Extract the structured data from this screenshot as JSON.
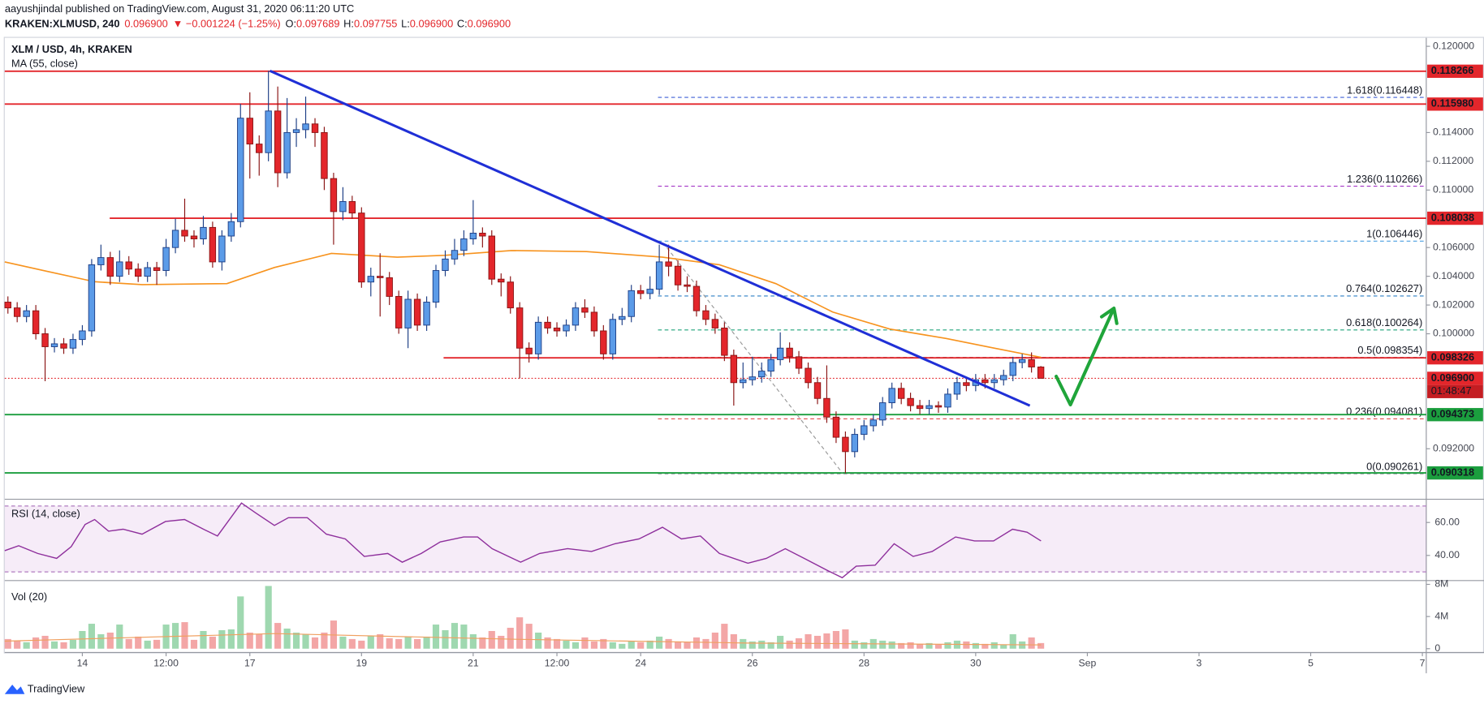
{
  "header": {
    "author_line": "aayushjindal published on TradingView.com, August 31, 2020 06:11:20 UTC",
    "symbol": "KRAKEN:XLMUSD, 240",
    "price": "0.096900",
    "change": "▼ −0.001224 (−1.25%)",
    "o_label": "O:",
    "o": "0.097689",
    "h_label": "H:",
    "h": "0.097755",
    "l_label": "L:",
    "l": "0.096900",
    "c_label": "C:",
    "c": "0.096900"
  },
  "footer": {
    "brand": "TradingView"
  },
  "chart_data": {
    "type": "candlestick",
    "legend": "XLM / USD, 4h, KRAKEN",
    "up_color": "#5b9be8",
    "down_color": "#e3262b",
    "x": [
      12.667,
      12.833,
      13,
      13.167,
      13.333,
      13.5,
      13.667,
      13.833,
      14,
      14.167,
      14.333,
      14.5,
      14.667,
      14.833,
      15,
      15.167,
      15.333,
      15.5,
      15.667,
      15.833,
      16,
      16.167,
      16.333,
      16.5,
      16.667,
      16.833,
      17,
      17.167,
      17.333,
      17.5,
      17.667,
      17.833,
      18,
      18.167,
      18.333,
      18.5,
      18.667,
      18.833,
      19,
      19.167,
      19.333,
      19.5,
      19.667,
      19.833,
      20,
      20.167,
      20.333,
      20.5,
      20.667,
      20.833,
      21,
      21.167,
      21.333,
      21.5,
      21.667,
      21.833,
      22,
      22.167,
      22.333,
      22.5,
      22.667,
      22.833,
      23,
      23.167,
      23.333,
      23.5,
      23.667,
      23.833,
      24,
      24.167,
      24.333,
      24.5,
      24.667,
      24.833,
      25,
      25.167,
      25.333,
      25.5,
      25.667,
      25.833,
      26,
      26.167,
      26.333,
      26.5,
      26.667,
      26.833,
      27,
      27.167,
      27.333,
      27.5,
      27.667,
      27.833,
      28,
      28.167,
      28.333,
      28.5,
      28.667,
      28.833,
      29,
      29.167,
      29.333,
      29.5,
      29.667,
      29.833,
      30,
      30.167,
      30.333,
      30.5,
      30.667,
      30.833,
      31,
      31.167
    ],
    "open": [
      0.1022,
      0.1018,
      0.1012,
      0.1016,
      0.1,
      0.0991,
      0.0993,
      0.099,
      0.0996,
      0.1002,
      0.1048,
      0.1053,
      0.104,
      0.105,
      0.1045,
      0.104,
      0.1046,
      0.1044,
      0.106,
      0.1072,
      0.1068,
      0.1066,
      0.1074,
      0.105,
      0.1068,
      0.1078,
      0.115,
      0.1132,
      0.1126,
      0.1155,
      0.1112,
      0.114,
      0.1142,
      0.1146,
      0.114,
      0.1108,
      0.1085,
      0.1092,
      0.1084,
      0.1036,
      0.104,
      0.1039,
      0.1026,
      0.1004,
      0.1024,
      0.1006,
      0.1022,
      0.1044,
      0.1052,
      0.1058,
      0.1066,
      0.107,
      0.1068,
      0.1038,
      0.1036,
      0.1018,
      0.099,
      0.0986,
      0.1008,
      0.1004,
      0.1002,
      0.1006,
      0.1018,
      0.1015,
      0.1002,
      0.0986,
      0.101,
      0.1012,
      0.103,
      0.1028,
      0.1031,
      0.105,
      0.1047,
      0.1034,
      0.1033,
      0.1016,
      0.101,
      0.1004,
      0.0985,
      0.0966,
      0.0968,
      0.097,
      0.0974,
      0.0982,
      0.099,
      0.0984,
      0.0976,
      0.0966,
      0.0955,
      0.0942,
      0.0928,
      0.0918,
      0.093,
      0.0936,
      0.094,
      0.0952,
      0.0962,
      0.0955,
      0.095,
      0.0948,
      0.095,
      0.0949,
      0.0958,
      0.0966,
      0.0964,
      0.0968,
      0.0966,
      0.0968,
      0.0971,
      0.098,
      0.0982,
      0.097689
    ],
    "high": [
      0.1026,
      0.1022,
      0.102,
      0.102,
      0.1004,
      0.0997,
      0.0997,
      0.1,
      0.1006,
      0.1052,
      0.1062,
      0.1057,
      0.1058,
      0.1054,
      0.1049,
      0.105,
      0.105,
      0.1066,
      0.108,
      0.1094,
      0.1072,
      0.1082,
      0.1078,
      0.1072,
      0.1084,
      0.116,
      0.1168,
      0.1138,
      0.1183,
      0.1172,
      0.1164,
      0.115,
      0.1165,
      0.115,
      0.1144,
      0.1112,
      0.1102,
      0.1096,
      0.1088,
      0.1046,
      0.1056,
      0.1043,
      0.103,
      0.103,
      0.1028,
      0.1026,
      0.1048,
      0.1058,
      0.1066,
      0.1072,
      0.1093,
      0.1074,
      0.1072,
      0.1042,
      0.104,
      0.1022,
      0.0994,
      0.1012,
      0.1012,
      0.1008,
      0.101,
      0.1022,
      0.1024,
      0.1019,
      0.1006,
      0.1014,
      0.1018,
      0.1034,
      0.1034,
      0.104,
      0.1062,
      0.1062,
      0.1051,
      0.104,
      0.1037,
      0.102,
      0.1014,
      0.1008,
      0.0989,
      0.098,
      0.0984,
      0.098,
      0.0986,
      0.1001,
      0.0994,
      0.0988,
      0.098,
      0.097,
      0.0978,
      0.0946,
      0.0932,
      0.0934,
      0.094,
      0.0944,
      0.0956,
      0.0966,
      0.0966,
      0.0959,
      0.0954,
      0.0954,
      0.0953,
      0.0962,
      0.097,
      0.097,
      0.0972,
      0.0972,
      0.0972,
      0.0975,
      0.0984,
      0.0986,
      0.0987,
      0.097755
    ],
    "low": [
      0.1014,
      0.1008,
      0.1008,
      0.0996,
      0.0967,
      0.0987,
      0.0986,
      0.0986,
      0.0992,
      0.0998,
      0.1044,
      0.1034,
      0.1036,
      0.1041,
      0.1036,
      0.1036,
      0.1034,
      0.104,
      0.1056,
      0.1064,
      0.106,
      0.1062,
      0.1046,
      0.1044,
      0.1064,
      0.1074,
      0.1108,
      0.111,
      0.112,
      0.1102,
      0.1108,
      0.113,
      0.1136,
      0.113,
      0.11,
      0.1062,
      0.1079,
      0.108,
      0.1032,
      0.1026,
      0.1012,
      0.102,
      0.1,
      0.099,
      0.1002,
      0.1002,
      0.1018,
      0.104,
      0.1048,
      0.1054,
      0.1062,
      0.106,
      0.1034,
      0.1026,
      0.1014,
      0.0969,
      0.098,
      0.0982,
      0.1,
      0.0998,
      0.0998,
      0.1002,
      0.1011,
      0.0998,
      0.0982,
      0.0982,
      0.1006,
      0.1008,
      0.1024,
      0.1024,
      0.1027,
      0.104,
      0.103,
      0.1029,
      0.1012,
      0.1006,
      0.1,
      0.0981,
      0.095,
      0.0962,
      0.0964,
      0.0966,
      0.097,
      0.0978,
      0.098,
      0.0972,
      0.0962,
      0.0951,
      0.0938,
      0.0924,
      0.0903,
      0.0914,
      0.0926,
      0.0932,
      0.0936,
      0.0948,
      0.0951,
      0.0946,
      0.0944,
      0.0944,
      0.0945,
      0.0945,
      0.0954,
      0.096,
      0.096,
      0.0962,
      0.0962,
      0.0964,
      0.0967,
      0.0976,
      0.0973,
      0.0969
    ],
    "close": [
      0.1018,
      0.1012,
      0.1016,
      0.1,
      0.0991,
      0.0993,
      0.099,
      0.0996,
      0.1002,
      0.1048,
      0.1053,
      0.104,
      0.105,
      0.1045,
      0.104,
      0.1046,
      0.1044,
      0.106,
      0.1072,
      0.1068,
      0.1066,
      0.1074,
      0.105,
      0.1068,
      0.1078,
      0.115,
      0.1132,
      0.1126,
      0.1155,
      0.1112,
      0.114,
      0.1142,
      0.1146,
      0.114,
      0.1108,
      0.1085,
      0.1092,
      0.1084,
      0.1036,
      0.104,
      0.1039,
      0.1026,
      0.1004,
      0.1024,
      0.1006,
      0.1022,
      0.1044,
      0.1052,
      0.1058,
      0.1066,
      0.107,
      0.1068,
      0.1038,
      0.1036,
      0.1018,
      0.099,
      0.0986,
      0.1008,
      0.1004,
      0.1002,
      0.1006,
      0.1018,
      0.1015,
      0.1002,
      0.0986,
      0.101,
      0.1012,
      0.103,
      0.1028,
      0.1031,
      0.105,
      0.1047,
      0.1034,
      0.1033,
      0.1016,
      0.101,
      0.1004,
      0.0985,
      0.0966,
      0.0968,
      0.097,
      0.0974,
      0.0982,
      0.099,
      0.0984,
      0.0976,
      0.0966,
      0.0955,
      0.0942,
      0.0928,
      0.0918,
      0.093,
      0.0936,
      0.094,
      0.0952,
      0.0962,
      0.0955,
      0.095,
      0.0948,
      0.095,
      0.0949,
      0.0958,
      0.0966,
      0.0964,
      0.0968,
      0.0966,
      0.0968,
      0.0971,
      0.098,
      0.0982,
      0.097689,
      0.0969
    ],
    "ma": {
      "name": "MA (55, close)",
      "color": "#f7931e",
      "x": [
        12.61,
        13.37,
        14.22,
        15.07,
        16.59,
        17.44,
        18.46,
        19.64,
        20.49,
        21.68,
        23.03,
        24.39,
        25.41,
        26.42,
        27.44,
        28.46,
        29.47,
        30.32,
        31.17
      ],
      "values": [
        0.105,
        0.10434,
        0.10362,
        0.10342,
        0.10349,
        0.10461,
        0.10559,
        0.10533,
        0.10546,
        0.10579,
        0.10572,
        0.10533,
        0.1048,
        0.10349,
        0.10151,
        0.10033,
        0.09967,
        0.09901,
        0.09836
      ]
    },
    "xlim": [
      12.61,
      38.07
    ],
    "xticks": [
      14,
      {
        "value": 15.5,
        "label": "12:00"
      },
      17,
      19,
      21,
      {
        "value": 22.5,
        "label": "12:00"
      },
      24,
      26,
      28,
      30,
      {
        "value": 32,
        "label": "Sep"
      },
      {
        "value": 34,
        "label": "3"
      },
      {
        "value": 36,
        "label": "5"
      },
      {
        "value": 38,
        "label": "7"
      }
    ],
    "ylim": [
      0.08855,
      0.12059
    ],
    "yticks": [
      {
        "value": 0.12,
        "label": "0.120000"
      },
      {
        "value": 0.114,
        "label": "0.114000"
      },
      {
        "value": 0.112,
        "label": "0.112000"
      },
      {
        "value": 0.11,
        "label": "0.110000"
      },
      {
        "value": 0.106,
        "label": "0.106000"
      },
      {
        "value": 0.104,
        "label": "0.104000"
      },
      {
        "value": 0.102,
        "label": "0.102000"
      },
      {
        "value": 0.1,
        "label": "0.100000"
      },
      {
        "value": 0.092,
        "label": "0.092000"
      }
    ],
    "levels": [
      {
        "value": 0.118266,
        "label": "0.118266",
        "color": "#e3262b",
        "start": 12.61
      },
      {
        "value": 0.11598,
        "label": "0.115980",
        "color": "#e3262b",
        "start": 12.61
      },
      {
        "value": 0.108038,
        "label": "0.108038",
        "color": "#e3262b",
        "start": 14.49
      },
      {
        "value": 0.098326,
        "label": "0.098326",
        "color": "#e3262b",
        "start": 20.47
      },
      {
        "value": 0.094373,
        "label": "0.094373",
        "color": "#1b9e3e",
        "start": 12.61
      },
      {
        "value": 0.090318,
        "label": "0.090318",
        "color": "#1b9e3e",
        "start": 12.61
      }
    ],
    "last": {
      "value": 0.0969,
      "label": "0.096900",
      "countdown": "01:48:47",
      "color": "#e3262b"
    },
    "fib": {
      "start": 24.31,
      "levels": [
        {
          "text": "1.618(0.116448)",
          "value": 0.116448,
          "color": "#3f5fd6"
        },
        {
          "text": "1.236(0.110266)",
          "value": 0.110266,
          "color": "#a334c6"
        },
        {
          "text": "1(0.106446)",
          "value": 0.106446,
          "color": "#4a9fe0"
        },
        {
          "text": "0.764(0.102627)",
          "value": 0.102627,
          "color": "#2d7fc4"
        },
        {
          "text": "0.618(0.100264)",
          "value": 0.100264,
          "color": "#1ea37a"
        },
        {
          "text": "0.5(0.098354)",
          "value": 0.098354,
          "color": "#555a66"
        },
        {
          "text": "0.236(0.094081)",
          "value": 0.094081,
          "color": "#e04b4b"
        },
        {
          "text": "0(0.090261)",
          "value": 0.090261,
          "color": "#777c88"
        }
      ]
    },
    "trendline": {
      "color": "#1f2fd6",
      "x": [
        17.36,
        30.97
      ],
      "values": [
        0.11829,
        0.095
      ]
    },
    "fib_connector": {
      "color": "#9a9a9a",
      "x": [
        24.47,
        27.61
      ],
      "values": [
        0.10599,
        0.09033
      ]
    },
    "rsi": {
      "title": "RSI (14, close)",
      "color": "#8e2f9c",
      "band": [
        30,
        70
      ],
      "ylim": [
        25.3,
        73.5
      ],
      "yticks": [
        {
          "value": 60,
          "label": "60.00"
        },
        {
          "value": 40,
          "label": "40.00"
        }
      ],
      "x": [
        12.61,
        12.86,
        13.2,
        13.54,
        13.8,
        14.05,
        14.22,
        14.47,
        14.73,
        15.07,
        15.49,
        15.83,
        16.17,
        16.42,
        16.85,
        17.1,
        17.44,
        17.69,
        18.03,
        18.37,
        18.71,
        19.05,
        19.47,
        19.73,
        20.07,
        20.41,
        20.83,
        21.08,
        21.34,
        21.85,
        22.19,
        22.69,
        23.12,
        23.54,
        23.97,
        24.39,
        24.73,
        25.07,
        25.41,
        25.92,
        26.25,
        26.59,
        26.93,
        27.36,
        27.61,
        27.86,
        28.2,
        28.54,
        28.88,
        29.22,
        29.64,
        29.98,
        30.32,
        30.66,
        30.92,
        31.17
      ],
      "values": [
        42.9,
        45.9,
        41.2,
        38.2,
        45.3,
        58.8,
        61.8,
        54.7,
        55.9,
        52.9,
        60.6,
        61.8,
        55.9,
        51.8,
        71.8,
        65.9,
        58.2,
        62.9,
        62.9,
        52.9,
        50,
        39.4,
        41.2,
        35.9,
        41.2,
        48.2,
        51.2,
        51.2,
        44.1,
        35.9,
        41.2,
        44.1,
        42.4,
        47.1,
        50,
        57.1,
        50,
        51.8,
        41.2,
        35.3,
        38.2,
        44.1,
        38.2,
        30.6,
        26.5,
        33.5,
        34.1,
        47.1,
        39.4,
        42.4,
        51.2,
        48.8,
        48.8,
        55.9,
        54.1,
        48.8
      ]
    },
    "volume": {
      "title": "Vol (20)",
      "up_color": "#9fd8b0",
      "down_color": "#f3a6a6",
      "ylim": [
        -0.47,
        8.35
      ],
      "yticks": [
        {
          "value": 8,
          "label": "8M"
        },
        {
          "value": 4,
          "label": "4M"
        },
        0
      ],
      "values": [
        1.2,
        1.0,
        0.8,
        1.4,
        1.6,
        0.9,
        0.8,
        1.1,
        2.2,
        3.1,
        1.8,
        2.0,
        3.0,
        1.2,
        1.5,
        1.0,
        1.1,
        3.0,
        3.2,
        3.3,
        1.1,
        2.2,
        1.5,
        2.3,
        2.4,
        6.5,
        2.0,
        1.8,
        7.8,
        3.2,
        2.5,
        2.0,
        1.8,
        1.4,
        2.0,
        3.5,
        1.5,
        1.2,
        1.0,
        1.6,
        1.8,
        1.3,
        1.2,
        1.5,
        1.2,
        1.5,
        3.0,
        2.3,
        3.2,
        3.0,
        1.8,
        1.4,
        2.2,
        1.6,
        2.6,
        3.9,
        3.1,
        2.0,
        1.4,
        1.2,
        1.0,
        0.8,
        1.4,
        0.9,
        1.2,
        0.8,
        0.6,
        0.9,
        0.8,
        1.0,
        1.5,
        1.2,
        0.9,
        0.8,
        1.4,
        1.2,
        2.0,
        3.1,
        1.8,
        1.2,
        0.9,
        1.0,
        0.8,
        1.6,
        1.0,
        1.3,
        1.8,
        1.6,
        1.9,
        2.2,
        2.4,
        1.0,
        0.8,
        1.2,
        1.0,
        0.9,
        0.7,
        0.8,
        0.6,
        0.7,
        0.5,
        0.8,
        1.0,
        0.9,
        0.7,
        0.6,
        0.8,
        0.5,
        1.8,
        0.9,
        1.4,
        0.7
      ],
      "ma": {
        "color": "#f0a060",
        "x": [
          12.61,
          17.44,
          21.68,
          25.92,
          31.17
        ],
        "values": [
          0.94,
          1.88,
          1.18,
          0.7,
          0.47
        ]
      }
    }
  }
}
